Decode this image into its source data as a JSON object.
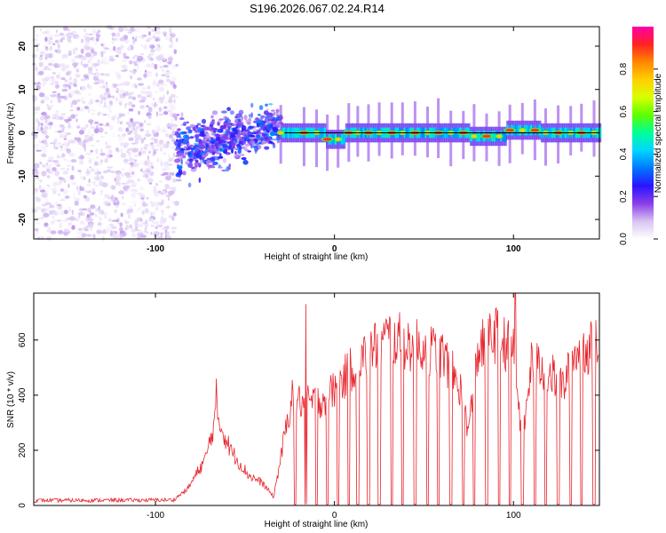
{
  "title": "S196.2026.067.02.24.R14",
  "colors": {
    "snr_line": "#e8232b",
    "zero_line": "#000000",
    "colorscale": [
      "#ffffff",
      "#d8c4f2",
      "#8a3ee8",
      "#2a14ff",
      "#0077ff",
      "#00d6ff",
      "#00ff9a",
      "#5cff00",
      "#d8ff00",
      "#ffd000",
      "#ff8800",
      "#ff2222",
      "#ff00aa"
    ]
  },
  "chart_data": [
    {
      "type": "heatmap",
      "name": "spectrogram",
      "xlabel": "Height of straight line (km)",
      "ylabel": "Frequency (Hz)",
      "xlim": [
        -168,
        148
      ],
      "ylim": [
        -24.5,
        24.5
      ],
      "xticks": [
        -100,
        0,
        100
      ],
      "xtick_labels": [
        "-100",
        "0",
        "100"
      ],
      "yticks": [
        -20,
        -10,
        0,
        10,
        20
      ],
      "ytick_labels": [
        "-20",
        "-10",
        "0",
        "10",
        "20"
      ],
      "colorbar": {
        "label": "Normalized spectral amplitude",
        "range": [
          0,
          1
        ],
        "ticks": [
          0.0,
          0.2,
          0.4,
          0.6,
          0.8
        ],
        "tick_labels": [
          "0.0",
          "0.2",
          "0.4",
          "0.6",
          "0.8"
        ]
      },
      "segments": [
        {
          "region": "noise",
          "x_range": [
            -168,
            -88
          ],
          "freq_range": [
            -24.5,
            24.5
          ],
          "amplitude": [
            0.02,
            0.12
          ]
        },
        {
          "region": "emerging_signal",
          "x_range": [
            -88,
            -30
          ],
          "freq_range": [
            -12,
            8
          ],
          "amplitude": [
            0.1,
            0.35
          ]
        },
        {
          "region": "stable_line",
          "x_range": [
            -30,
            148
          ],
          "freq_center": 0,
          "amplitude": [
            0.2,
            0.95
          ]
        }
      ],
      "peak_positions_km": [
        -30,
        -17,
        -10,
        -4,
        2,
        8,
        13,
        19,
        25,
        32,
        38,
        45,
        52,
        58,
        65,
        72,
        78,
        85,
        92,
        98,
        105,
        112,
        118,
        125,
        132,
        138,
        145
      ]
    },
    {
      "type": "line",
      "name": "snr",
      "xlabel": "Height of straight line (km)",
      "ylabel": "SNR (10 * v/v)",
      "xlim": [
        -168,
        148
      ],
      "ylim": [
        0,
        770
      ],
      "xticks": [
        -100,
        0,
        100
      ],
      "xtick_labels": [
        "-100",
        "0",
        "100"
      ],
      "yticks": [
        0,
        200,
        400,
        600
      ],
      "ytick_labels": [
        "0",
        "200",
        "400",
        "600"
      ],
      "envelope": [
        {
          "x": -168,
          "y": 18
        },
        {
          "x": -90,
          "y": 20
        },
        {
          "x": -82,
          "y": 60
        },
        {
          "x": -72,
          "y": 170
        },
        {
          "x": -66,
          "y": 330
        },
        {
          "x": -58,
          "y": 200
        },
        {
          "x": -48,
          "y": 110
        },
        {
          "x": -40,
          "y": 80
        },
        {
          "x": -34,
          "y": 30
        },
        {
          "x": -24,
          "y": 390
        },
        {
          "x": -17,
          "y": 370
        },
        {
          "x": -8,
          "y": 380
        },
        {
          "x": 0,
          "y": 420
        },
        {
          "x": 10,
          "y": 500
        },
        {
          "x": 20,
          "y": 560
        },
        {
          "x": 30,
          "y": 610
        },
        {
          "x": 40,
          "y": 590
        },
        {
          "x": 50,
          "y": 570
        },
        {
          "x": 60,
          "y": 550
        },
        {
          "x": 70,
          "y": 430
        },
        {
          "x": 75,
          "y": 270
        },
        {
          "x": 80,
          "y": 560
        },
        {
          "x": 90,
          "y": 620
        },
        {
          "x": 100,
          "y": 560
        },
        {
          "x": 105,
          "y": 220
        },
        {
          "x": 110,
          "y": 520
        },
        {
          "x": 120,
          "y": 480
        },
        {
          "x": 128,
          "y": 430
        },
        {
          "x": 135,
          "y": 560
        },
        {
          "x": 148,
          "y": 580
        }
      ],
      "spikes": [
        {
          "x": -16,
          "y": 730
        },
        {
          "x": 101,
          "y": 770
        },
        {
          "x": -66,
          "y": 460
        }
      ],
      "dropouts_km": [
        -22,
        -16,
        -10,
        -4,
        2,
        8,
        13,
        19,
        25,
        32,
        38,
        45,
        52,
        58,
        65,
        72,
        78,
        85,
        92,
        98,
        105,
        112,
        118,
        125,
        132,
        138,
        145
      ]
    }
  ]
}
